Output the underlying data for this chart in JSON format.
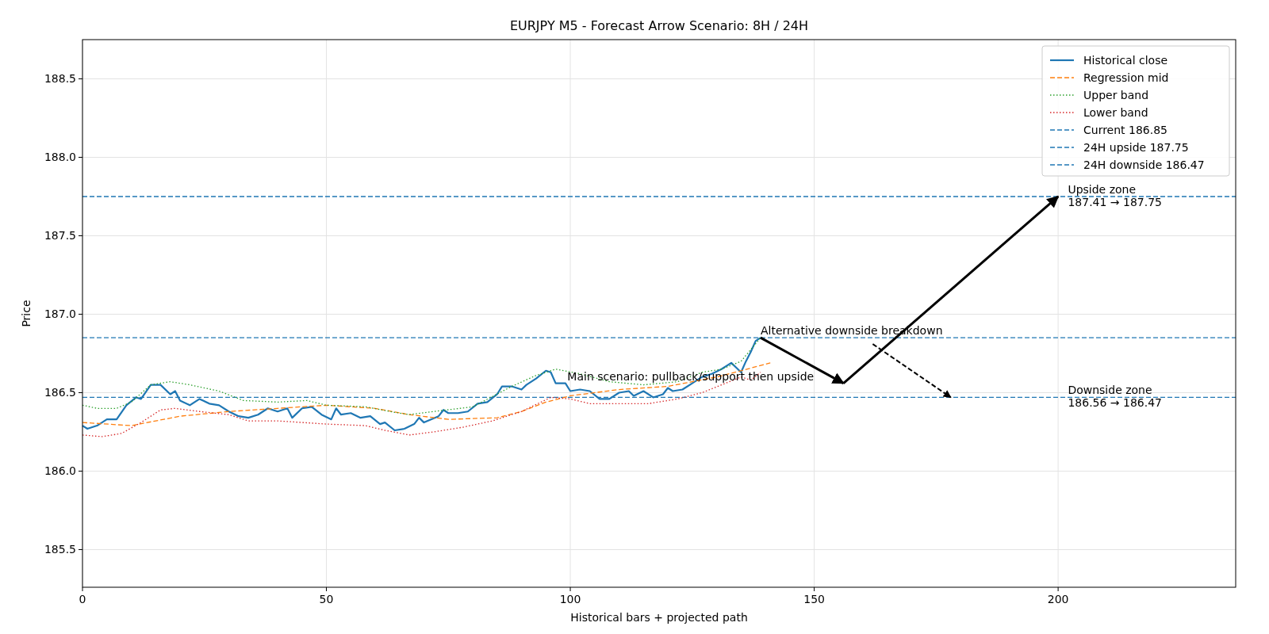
{
  "chart_data": {
    "type": "line",
    "title": "EURJPY M5 - Forecast Arrow Scenario: 8H / 24H",
    "xlabel": "Historical bars + projected path",
    "ylabel": "Price",
    "xlim": [
      0,
      236.4
    ],
    "ylim": [
      185.26,
      188.75
    ],
    "xticks": [
      0,
      50,
      100,
      150,
      200
    ],
    "yticks": [
      185.5,
      {
        "value": 186,
        "label": "186.0"
      },
      186.5,
      {
        "value": 187,
        "label": "187.0"
      },
      187.5,
      {
        "value": 188,
        "label": "188.0"
      },
      188.5
    ],
    "grid": true,
    "legend": "top right",
    "marker": "none",
    "series": [
      {
        "name": "Historical close",
        "color": "#1f77b4",
        "line_style": "solid",
        "x": [
          0,
          1,
          3,
          5,
          7,
          9,
          11,
          12,
          14,
          16,
          18,
          19,
          20,
          22,
          24,
          26,
          28,
          30,
          32,
          34,
          36,
          38,
          40,
          42,
          43,
          45,
          47,
          49,
          51,
          52,
          53,
          55,
          57,
          59,
          61,
          62,
          64,
          66,
          68,
          69,
          70,
          73,
          74,
          75,
          77,
          79,
          81,
          83,
          85,
          86,
          88,
          90,
          91,
          93,
          95,
          96,
          97,
          99,
          100,
          102,
          104,
          106,
          108,
          110,
          112,
          113,
          115,
          117,
          119,
          120,
          121,
          123,
          125,
          127,
          129,
          131,
          133,
          134,
          135,
          136,
          137,
          138,
          139
        ],
        "values": [
          186.29,
          186.27,
          186.29,
          186.33,
          186.33,
          186.42,
          186.47,
          186.46,
          186.55,
          186.55,
          186.49,
          186.51,
          186.45,
          186.42,
          186.46,
          186.43,
          186.42,
          186.38,
          186.35,
          186.34,
          186.36,
          186.4,
          186.38,
          186.4,
          186.34,
          186.4,
          186.41,
          186.36,
          186.33,
          186.4,
          186.36,
          186.37,
          186.34,
          186.35,
          186.3,
          186.31,
          186.26,
          186.27,
          186.3,
          186.34,
          186.31,
          186.35,
          186.39,
          186.37,
          186.37,
          186.38,
          186.43,
          186.44,
          186.49,
          186.54,
          186.54,
          186.52,
          186.55,
          186.59,
          186.64,
          186.63,
          186.56,
          186.56,
          186.51,
          186.52,
          186.51,
          186.46,
          186.46,
          186.5,
          186.51,
          186.48,
          186.51,
          186.47,
          186.49,
          186.53,
          186.51,
          186.52,
          186.56,
          186.6,
          186.62,
          186.65,
          186.69,
          186.66,
          186.63,
          186.7,
          186.76,
          186.83,
          186.85
        ]
      },
      {
        "name": "Regression mid",
        "color": "#ff7f0e",
        "line_style": "dashed",
        "x": [
          0,
          10,
          20,
          30,
          40,
          50,
          60,
          67,
          75,
          85,
          90,
          95,
          100,
          110,
          120,
          125,
          130,
          135,
          141
        ],
        "values": [
          186.31,
          186.29,
          186.35,
          186.38,
          186.4,
          186.42,
          186.4,
          186.36,
          186.33,
          186.34,
          186.38,
          186.44,
          186.48,
          186.52,
          186.54,
          186.57,
          186.6,
          186.64,
          186.69
        ]
      },
      {
        "name": "Upper band",
        "color": "#2ca02c",
        "line_style": "dotted",
        "x": [
          0,
          3,
          7,
          10,
          14,
          18,
          22,
          28,
          33,
          40,
          46,
          50,
          58,
          63,
          67,
          72,
          80,
          88,
          93,
          97,
          102,
          108,
          115,
          122,
          127,
          131,
          135,
          139
        ],
        "values": [
          186.42,
          186.4,
          186.4,
          186.44,
          186.55,
          186.57,
          186.55,
          186.51,
          186.45,
          186.44,
          186.45,
          186.42,
          186.41,
          186.38,
          186.36,
          186.38,
          186.41,
          186.54,
          186.61,
          186.65,
          186.62,
          186.57,
          186.55,
          186.57,
          186.63,
          186.65,
          186.7,
          186.85
        ]
      },
      {
        "name": "Lower band",
        "color": "#d62728",
        "line_style": "dotted",
        "x": [
          0,
          4,
          8,
          12,
          16,
          19,
          24,
          30,
          34,
          40,
          45,
          50,
          58,
          62,
          67,
          72,
          78,
          84,
          90,
          96,
          100,
          104,
          110,
          116,
          122,
          127,
          131,
          135,
          137,
          139
        ],
        "values": [
          186.23,
          186.22,
          186.24,
          186.31,
          186.39,
          186.4,
          186.38,
          186.36,
          186.32,
          186.32,
          186.31,
          186.3,
          186.29,
          186.26,
          186.23,
          186.25,
          186.28,
          186.32,
          186.38,
          186.47,
          186.46,
          186.43,
          186.43,
          186.43,
          186.46,
          186.5,
          186.55,
          186.6,
          186.58,
          186.63
        ]
      },
      {
        "color": "#000000",
        "line_style": "solid",
        "x": [
          139,
          156
        ],
        "values": [
          186.85,
          186.56
        ]
      },
      {
        "color": "#000000",
        "line_style": "solid",
        "x": [
          156,
          200
        ],
        "values": [
          186.56,
          187.75
        ]
      },
      {
        "color": "#000000",
        "line_style": "dashed",
        "x": [
          162,
          178
        ],
        "values": [
          186.81,
          186.47
        ]
      }
    ],
    "ref_lines": [
      {
        "axis": "y",
        "value": 186.85,
        "label": "Current 186.85",
        "color": "#1f77b4",
        "line_style": "dashed"
      },
      {
        "axis": "y",
        "value": 187.75,
        "label": "24H upside 187.75",
        "color": "#1f77b4",
        "line_style": "dashed"
      },
      {
        "axis": "y",
        "value": 186.47,
        "label": "24H downside 186.47",
        "color": "#1f77b4",
        "line_style": "dashed"
      }
    ],
    "annotations": [
      {
        "text": "Alternative downside breakdown",
        "x": 139,
        "y": 186.85
      },
      {
        "text": "Main scenario: pullback/support then upside",
        "x": 99.4,
        "y": 186.56
      },
      {
        "text": "Upside zone\n187.41 → 187.75",
        "x": 202,
        "y": 187.75
      },
      {
        "text": "Downside zone\n186.56 → 186.47",
        "x": 202,
        "y": 186.47
      }
    ]
  }
}
